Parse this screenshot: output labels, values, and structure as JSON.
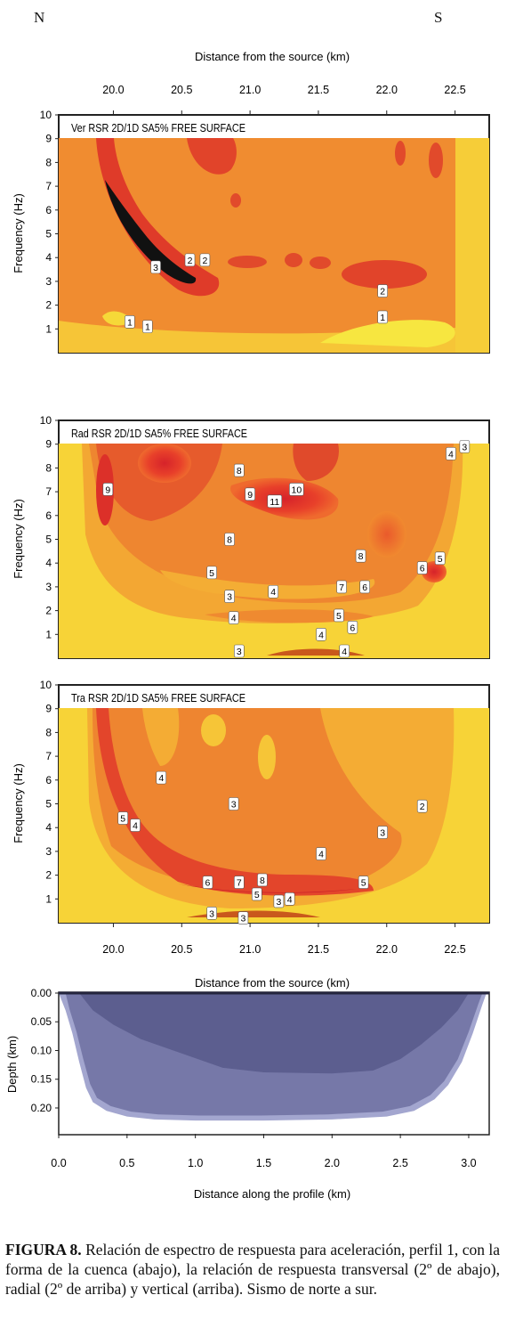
{
  "directions": {
    "north": "N",
    "south": "S"
  },
  "top_axis": {
    "label": "Distance from the source (km)",
    "ticks": [
      20.0,
      20.5,
      21.0,
      21.5,
      22.0,
      22.5
    ],
    "range": [
      19.6,
      22.75
    ]
  },
  "middle_axis": {
    "label": "Distance from the source (km)",
    "ticks": [
      20.0,
      20.5,
      21.0,
      21.5,
      22.0,
      22.5
    ]
  },
  "frequency_axis": {
    "label": "Frequency (Hz)",
    "ticks": [
      1,
      2,
      3,
      4,
      5,
      6,
      7,
      8,
      9,
      10
    ],
    "range": [
      0,
      10
    ]
  },
  "panels": [
    {
      "id": "ver",
      "title": "Ver RSR 2D/1D SA5% FREE SURFACE",
      "contour_labels": [
        {
          "text": "3",
          "x": 20.31,
          "y": 3.6
        },
        {
          "text": "2",
          "x": 20.56,
          "y": 3.9
        },
        {
          "text": "2",
          "x": 20.67,
          "y": 3.9
        },
        {
          "text": "1",
          "x": 20.12,
          "y": 1.3
        },
        {
          "text": "1",
          "x": 20.25,
          "y": 1.1
        },
        {
          "text": "2",
          "x": 21.97,
          "y": 2.6
        },
        {
          "text": "1",
          "x": 21.97,
          "y": 1.5
        }
      ]
    },
    {
      "id": "rad",
      "title": "Rad RSR 2D/1D SA5% FREE SURFACE",
      "contour_labels": [
        {
          "text": "9",
          "x": 19.96,
          "y": 7.1
        },
        {
          "text": "8",
          "x": 20.92,
          "y": 7.9
        },
        {
          "text": "9",
          "x": 21.0,
          "y": 6.9
        },
        {
          "text": "11",
          "x": 21.18,
          "y": 6.6
        },
        {
          "text": "10",
          "x": 21.34,
          "y": 7.1
        },
        {
          "text": "8",
          "x": 20.85,
          "y": 5.0
        },
        {
          "text": "8",
          "x": 21.81,
          "y": 4.3
        },
        {
          "text": "5",
          "x": 20.72,
          "y": 3.6
        },
        {
          "text": "3",
          "x": 20.85,
          "y": 2.6
        },
        {
          "text": "4",
          "x": 21.17,
          "y": 2.8
        },
        {
          "text": "7",
          "x": 21.67,
          "y": 3.0
        },
        {
          "text": "6",
          "x": 21.84,
          "y": 3.0
        },
        {
          "text": "6",
          "x": 22.26,
          "y": 3.8
        },
        {
          "text": "5",
          "x": 22.39,
          "y": 4.2
        },
        {
          "text": "4",
          "x": 20.88,
          "y": 1.7
        },
        {
          "text": "5",
          "x": 21.65,
          "y": 1.8
        },
        {
          "text": "6",
          "x": 21.75,
          "y": 1.3
        },
        {
          "text": "4",
          "x": 21.52,
          "y": 1.0
        },
        {
          "text": "3",
          "x": 20.92,
          "y": 0.3
        },
        {
          "text": "4",
          "x": 21.69,
          "y": 0.3
        },
        {
          "text": "4",
          "x": 22.47,
          "y": 8.6
        },
        {
          "text": "3",
          "x": 22.57,
          "y": 8.9
        }
      ]
    },
    {
      "id": "tra",
      "title": "Tra RSR 2D/1D SA5% FREE SURFACE",
      "contour_labels": [
        {
          "text": "4",
          "x": 20.35,
          "y": 6.1
        },
        {
          "text": "3",
          "x": 20.88,
          "y": 5.0
        },
        {
          "text": "2",
          "x": 22.26,
          "y": 4.9
        },
        {
          "text": "3",
          "x": 21.97,
          "y": 3.8
        },
        {
          "text": "5",
          "x": 20.07,
          "y": 4.4
        },
        {
          "text": "4",
          "x": 20.16,
          "y": 4.1
        },
        {
          "text": "4",
          "x": 21.52,
          "y": 2.9
        },
        {
          "text": "6",
          "x": 20.69,
          "y": 1.7
        },
        {
          "text": "7",
          "x": 20.92,
          "y": 1.7
        },
        {
          "text": "8",
          "x": 21.09,
          "y": 1.8
        },
        {
          "text": "5",
          "x": 21.05,
          "y": 1.2
        },
        {
          "text": "3",
          "x": 21.21,
          "y": 0.9
        },
        {
          "text": "4",
          "x": 21.29,
          "y": 1.0
        },
        {
          "text": "5",
          "x": 21.83,
          "y": 1.7
        },
        {
          "text": "3",
          "x": 20.72,
          "y": 0.4
        },
        {
          "text": "3",
          "x": 20.95,
          "y": 0.2
        }
      ]
    }
  ],
  "basin": {
    "xlabel": "Distance along the profile (km)",
    "ylabel": "Depth (km)",
    "x_ticks": [
      0.0,
      0.5,
      1.0,
      1.5,
      2.0,
      2.5,
      3.0
    ],
    "y_ticks": [
      0.0,
      0.05,
      0.1,
      0.15,
      0.2
    ],
    "y_tick_labels": [
      "0.00",
      "0.05",
      "0.10",
      "0.15",
      "0.20"
    ],
    "x_range": [
      0,
      3.15
    ],
    "y_range": [
      0,
      0.245
    ],
    "deep_layer_bottom": [
      [
        0.0,
        0.0
      ],
      [
        0.05,
        0.03
      ],
      [
        0.1,
        0.07
      ],
      [
        0.15,
        0.12
      ],
      [
        0.2,
        0.165
      ],
      [
        0.25,
        0.19
      ],
      [
        0.35,
        0.205
      ],
      [
        0.5,
        0.215
      ],
      [
        0.7,
        0.22
      ],
      [
        1.0,
        0.222
      ],
      [
        1.5,
        0.222
      ],
      [
        2.0,
        0.22
      ],
      [
        2.4,
        0.215
      ],
      [
        2.6,
        0.205
      ],
      [
        2.75,
        0.185
      ],
      [
        2.85,
        0.16
      ],
      [
        2.95,
        0.12
      ],
      [
        3.03,
        0.07
      ],
      [
        3.1,
        0.02
      ],
      [
        3.13,
        0.0
      ]
    ],
    "shallow_layer_bottom": [
      [
        0.15,
        0.0
      ],
      [
        0.25,
        0.03
      ],
      [
        0.4,
        0.055
      ],
      [
        0.6,
        0.08
      ],
      [
        0.9,
        0.105
      ],
      [
        1.2,
        0.13
      ],
      [
        1.5,
        0.138
      ],
      [
        2.0,
        0.14
      ],
      [
        2.3,
        0.135
      ],
      [
        2.5,
        0.115
      ],
      [
        2.65,
        0.09
      ],
      [
        2.8,
        0.06
      ],
      [
        2.92,
        0.03
      ],
      [
        3.0,
        0.0
      ]
    ],
    "colors": {
      "top": "#5c5e8f",
      "mid": "#7678a8",
      "deep": "#a3a6cf",
      "surface": "#24253e"
    }
  },
  "caption": {
    "label": "FIGURA 8.",
    "text": "Relación de espectro de respuesta para aceleración, perfil 1, con la forma de la cuenca (abajo), la relación de respuesta transversal (2º de abajo), radial (2º de arriba) y vertical (arriba). Sismo de norte a sur."
  }
}
